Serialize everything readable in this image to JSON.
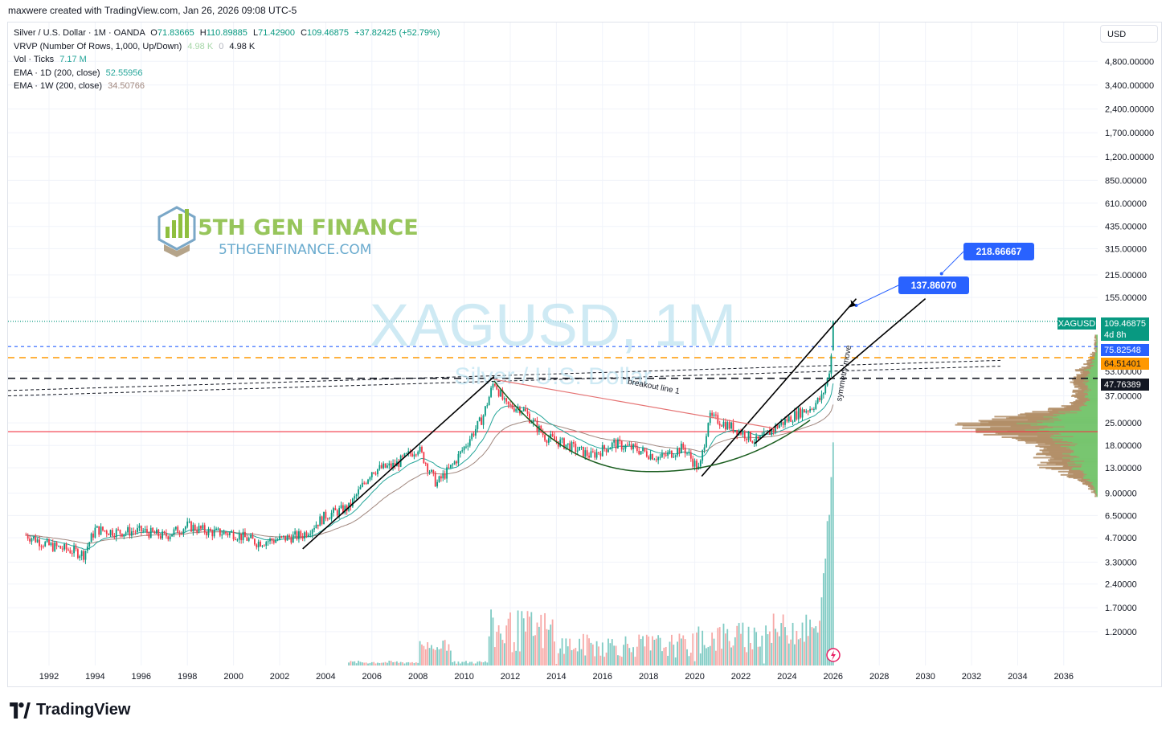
{
  "header": {
    "caption": "maxwere created with TradingView.com, Jan 26, 2026 09:08 UTC-5"
  },
  "legend": {
    "symbol_line": {
      "name": "Silver / U.S. Dollar · 1M · OANDA",
      "o_label": "O",
      "o": "71.83665",
      "h_label": "H",
      "h": "110.89885",
      "l_label": "L",
      "l": "71.42900",
      "c_label": "C",
      "c": "109.46875",
      "change": "+37.82425 (+52.79%)"
    },
    "vrvp": {
      "name": "VRVP (Number Of Rows, 1,000, Up/Down)",
      "v1": "4.98 K",
      "v2": "0",
      "v3": "4.98 K"
    },
    "vol": {
      "name": "Vol · Ticks",
      "value": "7.17 M"
    },
    "ema_1d": {
      "name": "EMA · 1D (200, close)",
      "value": "52.55956"
    },
    "ema_1w": {
      "name": "EMA · 1W (200, close)",
      "value": "34.50766"
    }
  },
  "currency_button": {
    "label": "USD"
  },
  "watermark": {
    "symbol": "XAGUSD, 1M",
    "description": "Silver / U.S. Dollar",
    "logo_title": "5TH GEN FINANCE",
    "logo_url": "5THGENFINANCE.COM"
  },
  "footer": {
    "brand": "TradingView"
  },
  "colors": {
    "up": "#089981",
    "down": "#f23645",
    "ema_1d": "#26a69a",
    "ema_1w": "#a1887f",
    "support": "#f23645",
    "resistance_dash": "#131722",
    "orange_dash": "#ff9800",
    "blue_dash": "#2962ff",
    "label_blue": "#2962ff",
    "vrvp_up": "#73c36b",
    "vrvp_down": "#b08c64",
    "cup": "#1b5e20"
  },
  "price_axis": {
    "ticks": [
      "4,800.00000",
      "3,400.00000",
      "2,400.00000",
      "1,700.00000",
      "1,200.00000",
      "850.00000",
      "610.00000",
      "435.00000",
      "315.00000",
      "215.00000",
      "155.00000",
      "53.00000",
      "37.00000",
      "25.00000",
      "18.00000",
      "13.00000",
      "9.00000",
      "6.50000",
      "4.70000",
      "3.30000",
      "2.40000",
      "1.70000",
      "1.20000"
    ],
    "labels": [
      {
        "text": "XAGUSD",
        "sub": "",
        "bg": "#089981",
        "fg": "#ffffff"
      },
      {
        "text": "109.46875",
        "sub": "4d 8h",
        "bg": "#089981",
        "fg": "#ffffff"
      },
      {
        "text": "75.82548",
        "sub": "",
        "bg": "#2962ff",
        "fg": "#ffffff"
      },
      {
        "text": "64.51401",
        "sub": "",
        "bg": "#ff9800",
        "fg": "#131722"
      },
      {
        "text": "47.76389",
        "sub": "",
        "bg": "#131722",
        "fg": "#ffffff"
      }
    ]
  },
  "time_axis": {
    "ticks": [
      "1992",
      "1994",
      "1996",
      "1998",
      "2000",
      "2002",
      "2004",
      "2006",
      "2008",
      "2010",
      "2012",
      "2014",
      "2016",
      "2018",
      "2020",
      "2022",
      "2024",
      "2026",
      "2028",
      "2030",
      "2032",
      "2034",
      "2036"
    ]
  },
  "annotations": {
    "target_1": "137.86070",
    "target_2": "218.66667",
    "breakout": "breakout line 1",
    "symmetry": "symmetry move"
  },
  "chart_data": {
    "type": "candlestick",
    "title": "Silver / U.S. Dollar · 1M · OANDA",
    "y_scale": "log",
    "ylim": [
      1.0,
      5200
    ],
    "x_range": [
      1991,
      2037
    ],
    "last_close": 109.46875,
    "horizontal_levels": [
      {
        "price": 109.46875,
        "style": "dotted",
        "color": "#089981"
      },
      {
        "price": 75.82548,
        "style": "dashed",
        "color": "#2962ff"
      },
      {
        "price": 64.51401,
        "style": "dashed",
        "color": "#ff9800"
      },
      {
        "price": 47.76389,
        "style": "dashed",
        "color": "#131722"
      },
      {
        "price": 22.0,
        "style": "solid",
        "color": "#f23645"
      }
    ],
    "yearly_price_path": [
      [
        1991.0,
        4.9
      ],
      [
        1992.0,
        4.2
      ],
      [
        1993.0,
        3.9
      ],
      [
        1993.5,
        3.7
      ],
      [
        1994.0,
        5.3
      ],
      [
        1995.0,
        5.1
      ],
      [
        1996.0,
        5.2
      ],
      [
        1997.0,
        4.8
      ],
      [
        1998.0,
        5.6
      ],
      [
        1999.0,
        5.1
      ],
      [
        2000.0,
        5.0
      ],
      [
        2001.0,
        4.4
      ],
      [
        2002.0,
        4.6
      ],
      [
        2003.0,
        4.9
      ],
      [
        2004.0,
        6.5
      ],
      [
        2005.0,
        7.3
      ],
      [
        2006.0,
        12.5
      ],
      [
        2007.0,
        13.5
      ],
      [
        2008.0,
        17.5
      ],
      [
        2008.8,
        10.3
      ],
      [
        2009.5,
        13.5
      ],
      [
        2010.0,
        17.5
      ],
      [
        2010.8,
        27.0
      ],
      [
        2011.3,
        46.0
      ],
      [
        2011.8,
        32.0
      ],
      [
        2012.5,
        31.0
      ],
      [
        2013.5,
        20.5
      ],
      [
        2014.5,
        18.0
      ],
      [
        2015.5,
        15.5
      ],
      [
        2016.5,
        18.5
      ],
      [
        2017.5,
        17.0
      ],
      [
        2018.5,
        15.0
      ],
      [
        2019.5,
        17.5
      ],
      [
        2020.2,
        12.5
      ],
      [
        2020.6,
        27.0
      ],
      [
        2021.0,
        26.0
      ],
      [
        2022.0,
        22.0
      ],
      [
        2022.7,
        19.0
      ],
      [
        2023.5,
        23.5
      ],
      [
        2024.5,
        29.0
      ],
      [
        2025.0,
        31.0
      ],
      [
        2025.5,
        36.0
      ],
      [
        2025.8,
        50.0
      ],
      [
        2025.95,
        71.8
      ],
      [
        2026.0,
        109.47
      ]
    ],
    "trendlines": [
      {
        "name": "impulse-2003-2011",
        "from": [
          2003.0,
          4.0
        ],
        "to": [
          2011.3,
          49.0
        ]
      },
      {
        "name": "impulse-2020-2026",
        "from": [
          2020.3,
          11.5
        ],
        "to": [
          2027.0,
          152.0
        ]
      },
      {
        "name": "symmetry-channel",
        "from": [
          2022.6,
          18.5
        ],
        "to": [
          2030.0,
          152.0
        ]
      },
      {
        "name": "breakout-line-1",
        "from": [
          2011.3,
          47.0
        ],
        "to": [
          2023.5,
          23.0
        ]
      }
    ],
    "targets": [
      {
        "date": 2027.0,
        "value": 137.8607
      },
      {
        "date": 2030.7,
        "value": 218.66667
      }
    ]
  }
}
